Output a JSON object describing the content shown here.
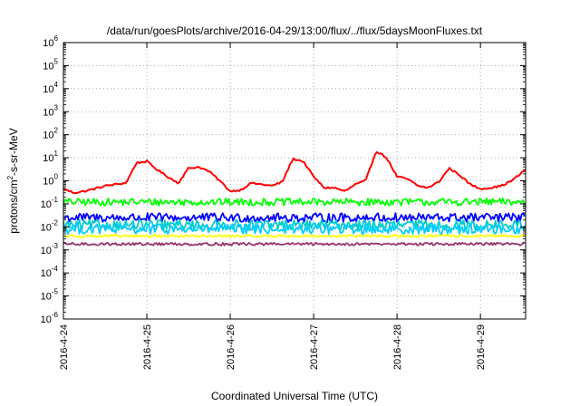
{
  "chart_data": {
    "type": "line",
    "title": "/data/run/goesPlots/archive/2016-04-29/13:00/flux/../flux/5daysMoonFluxes.txt",
    "xlabel": "Coordinated Universal Time (UTC)",
    "ylabel": {
      "base": "protons/cm",
      "sup": "2",
      "rest": "-s-sr-MeV"
    },
    "y_scale": "log",
    "ylim": [
      1e-06,
      1000000.0
    ],
    "y_ticks": [
      {
        "value": 1e-06,
        "base": "10",
        "exp": "-6"
      },
      {
        "value": 1e-05,
        "base": "10",
        "exp": "-5"
      },
      {
        "value": 0.0001,
        "base": "10",
        "exp": "-4"
      },
      {
        "value": 0.001,
        "base": "10",
        "exp": "-3"
      },
      {
        "value": 0.01,
        "base": "10",
        "exp": "-2"
      },
      {
        "value": 0.1,
        "base": "10",
        "exp": "-1"
      },
      {
        "value": 1,
        "base": "10",
        "exp": "0"
      },
      {
        "value": 10,
        "base": "10",
        "exp": "1"
      },
      {
        "value": 100,
        "base": "10",
        "exp": "2"
      },
      {
        "value": 1000,
        "base": "10",
        "exp": "3"
      },
      {
        "value": 10000,
        "base": "10",
        "exp": "4"
      },
      {
        "value": 100000,
        "base": "10",
        "exp": "5"
      },
      {
        "value": 1000000,
        "base": "10",
        "exp": "6"
      }
    ],
    "xlim": [
      "2016-04-24T00:00",
      "2016-04-29T13:00"
    ],
    "x_ticks": [
      "2016-4-24",
      "2016-4-25",
      "2016-4-26",
      "2016-4-27",
      "2016-4-28",
      "2016-4-29"
    ],
    "x_tick_dates": [
      "2016-04-24T00:00",
      "2016-04-25T00:00",
      "2016-04-26T00:00",
      "2016-04-27T00:00",
      "2016-04-28T00:00",
      "2016-04-29T00:00"
    ],
    "grid": true,
    "legend": "none",
    "series": [
      {
        "color": "#ff0000",
        "x": [
          "2016-04-24T00:00",
          "2016-04-24T03:00",
          "2016-04-24T06:00",
          "2016-04-24T09:00",
          "2016-04-24T12:00",
          "2016-04-24T15:00",
          "2016-04-24T18:00",
          "2016-04-24T21:00",
          "2016-04-25T00:00",
          "2016-04-25T03:00",
          "2016-04-25T06:00",
          "2016-04-25T09:00",
          "2016-04-25T12:00",
          "2016-04-25T15:00",
          "2016-04-25T18:00",
          "2016-04-25T21:00",
          "2016-04-26T00:00",
          "2016-04-26T03:00",
          "2016-04-26T06:00",
          "2016-04-26T09:00",
          "2016-04-26T12:00",
          "2016-04-26T15:00",
          "2016-04-26T18:00",
          "2016-04-26T21:00",
          "2016-04-27T00:00",
          "2016-04-27T03:00",
          "2016-04-27T06:00",
          "2016-04-27T09:00",
          "2016-04-27T12:00",
          "2016-04-27T15:00",
          "2016-04-27T18:00",
          "2016-04-27T21:00",
          "2016-04-28T00:00",
          "2016-04-28T03:00",
          "2016-04-28T06:00",
          "2016-04-28T09:00",
          "2016-04-28T12:00",
          "2016-04-28T15:00",
          "2016-04-28T18:00",
          "2016-04-28T21:00",
          "2016-04-29T00:00",
          "2016-04-29T03:00",
          "2016-04-29T06:00",
          "2016-04-29T09:00",
          "2016-04-29T13:00"
        ],
        "y": [
          0.45,
          0.3,
          0.35,
          0.45,
          0.6,
          0.7,
          0.8,
          6,
          7,
          3,
          1.5,
          0.8,
          3.5,
          4,
          2.5,
          1,
          0.35,
          0.4,
          0.8,
          0.7,
          0.6,
          0.9,
          9,
          7,
          1.5,
          0.5,
          0.5,
          0.35,
          0.7,
          1,
          20,
          10,
          1.5,
          1.2,
          0.6,
          0.5,
          0.9,
          3.5,
          1.8,
          0.7,
          0.45,
          0.5,
          0.6,
          1,
          3
        ]
      },
      {
        "color": "#00ff00",
        "x": [
          "2016-04-24T00:00",
          "2016-04-29T13:00"
        ],
        "y": [
          0.12,
          0.12
        ]
      },
      {
        "color": "#0000ff",
        "x": [
          "2016-04-24T00:00",
          "2016-04-29T13:00"
        ],
        "y": [
          0.025,
          0.025
        ]
      },
      {
        "color": "#00cccc",
        "x": [
          "2016-04-24T00:00",
          "2016-04-29T13:00"
        ],
        "y": [
          0.012,
          0.012
        ]
      },
      {
        "color": "#00ccff",
        "x": [
          "2016-04-24T00:00",
          "2016-04-29T13:00"
        ],
        "y": [
          0.008,
          0.008
        ]
      },
      {
        "color": "#ffff00",
        "x": [
          "2016-04-24T00:00",
          "2016-04-29T13:00"
        ],
        "y": [
          0.004,
          0.004
        ]
      },
      {
        "color": "#993366",
        "x": [
          "2016-04-24T00:00",
          "2016-04-29T13:00"
        ],
        "y": [
          0.0018,
          0.0018
        ]
      }
    ]
  }
}
